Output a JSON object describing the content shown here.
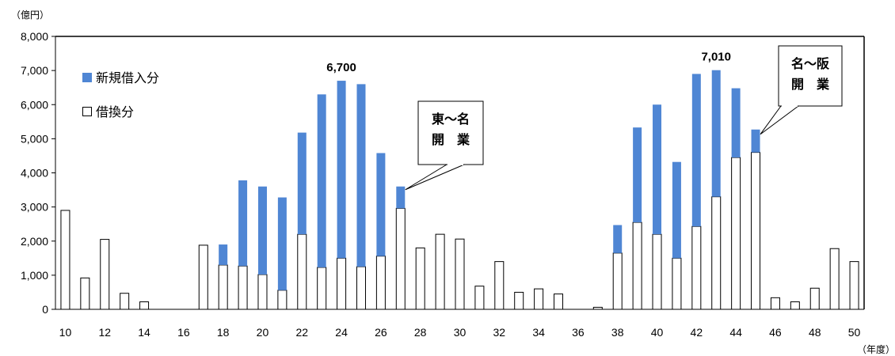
{
  "chart_data": {
    "type": "bar",
    "stacked": true,
    "y_unit": "（億円）",
    "x_unit": "（年度）",
    "ylim": [
      0,
      8000
    ],
    "yticks": [
      0,
      1000,
      2000,
      3000,
      4000,
      5000,
      6000,
      7000,
      8000
    ],
    "ytick_labels": [
      "0",
      "1,000",
      "2,000",
      "3,000",
      "4,000",
      "5,000",
      "6,000",
      "7,000",
      "8,000"
    ],
    "grid": false,
    "legend_position": "top-left",
    "categories": [
      "10",
      "11",
      "12",
      "13",
      "14",
      "15",
      "16",
      "17",
      "18",
      "19",
      "20",
      "21",
      "22",
      "23",
      "24",
      "25",
      "26",
      "27",
      "28",
      "29",
      "30",
      "31",
      "32",
      "33",
      "34",
      "35",
      "36",
      "37",
      "38",
      "39",
      "40",
      "41",
      "42",
      "43",
      "44",
      "45",
      "46",
      "47",
      "48",
      "49",
      "50"
    ],
    "x_tick_labels": [
      "10",
      "12",
      "14",
      "16",
      "18",
      "20",
      "22",
      "24",
      "26",
      "28",
      "30",
      "32",
      "34",
      "36",
      "38",
      "40",
      "42",
      "44",
      "46",
      "48",
      "50"
    ],
    "series": [
      {
        "name": "借換分",
        "color": "#ffffff",
        "values": [
          2900,
          920,
          2050,
          470,
          220,
          0,
          0,
          1880,
          1300,
          1270,
          1020,
          560,
          2200,
          1230,
          1500,
          1250,
          1560,
          2960,
          1800,
          2200,
          2060,
          680,
          1400,
          500,
          600,
          450,
          0,
          60,
          1650,
          2550,
          2200,
          1500,
          2430,
          3300,
          4450,
          4600,
          340,
          220,
          620,
          1780,
          1400
        ]
      },
      {
        "name": "新規借入分",
        "color": "#4f86d4",
        "values": [
          0,
          0,
          0,
          0,
          0,
          0,
          0,
          0,
          600,
          2510,
          2580,
          2720,
          2980,
          5070,
          5200,
          5350,
          3020,
          640,
          0,
          0,
          0,
          0,
          0,
          0,
          0,
          0,
          0,
          0,
          820,
          2780,
          3800,
          2820,
          4470,
          3710,
          2030,
          670,
          0,
          0,
          0,
          0,
          0
        ]
      }
    ],
    "annotations": [
      {
        "text": "6,700",
        "category": "24",
        "value": 6700
      },
      {
        "text": "7,010",
        "category": "43",
        "value": 7010
      }
    ],
    "callouts": [
      {
        "lines": [
          "東～名",
          "開　業"
        ],
        "category": "27"
      },
      {
        "lines": [
          "名～阪",
          "開　業"
        ],
        "category": "45"
      }
    ]
  }
}
